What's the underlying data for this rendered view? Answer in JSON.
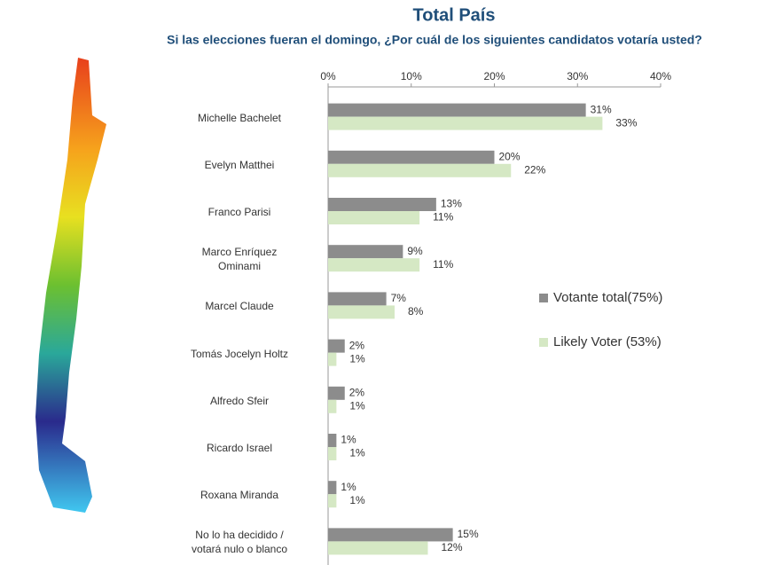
{
  "chart_data": {
    "type": "hbar",
    "title": "Total País",
    "subtitle": "Si las elecciones fueran el domingo, ¿Por cuál de los siguientes candidatos votaría usted?",
    "categories": [
      "Michelle Bachelet",
      "Evelyn Matthei",
      "Franco Parisi",
      "Marco Enríquez\nOminami",
      "Marcel Claude",
      "Tomás Jocelyn Holtz",
      "Alfredo Sfeir",
      "Ricardo Israel",
      "Roxana Miranda",
      "No lo ha decidido /\nvotará nulo o blanco"
    ],
    "series": [
      {
        "name": "Votante total(75%)",
        "color": "#8c8c8c",
        "values": [
          31,
          20,
          13,
          9,
          7,
          2,
          2,
          1,
          1,
          15
        ],
        "value_labels": [
          "31%",
          "20%",
          "13%",
          "9%",
          "7%",
          "2%",
          "2%",
          "1%",
          "1%",
          "15%"
        ]
      },
      {
        "name": "Likely Voter (53%)",
        "color": "#d5e8c4",
        "values": [
          33,
          22,
          11,
          11,
          8,
          1,
          1,
          1,
          1,
          12
        ],
        "value_labels": [
          "33%",
          "22%",
          "11%",
          "11%",
          "8%",
          "1%",
          "1%",
          "1%",
          "1%",
          "12%"
        ]
      }
    ],
    "xlim": [
      0,
      40
    ],
    "xticks": [
      {
        "value": 0,
        "label": "0%"
      },
      {
        "value": 10,
        "label": "10%"
      },
      {
        "value": 20,
        "label": "20%"
      },
      {
        "value": 30,
        "label": "30%"
      },
      {
        "value": 40,
        "label": "40%"
      }
    ],
    "grid": false,
    "legend": "right"
  }
}
